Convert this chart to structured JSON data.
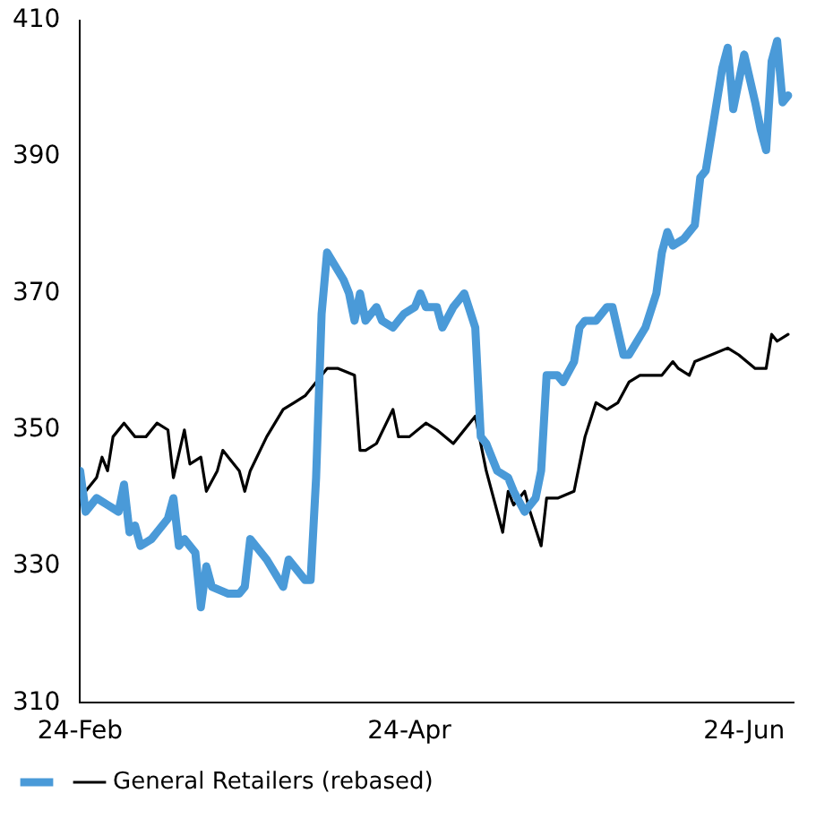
{
  "chart_data": {
    "type": "line",
    "xlim": [
      "--02-24",
      "--07-03"
    ],
    "xticks": [
      {
        "value": "--02-24",
        "label": "24-Feb"
      },
      {
        "value": "--04-24",
        "label": "24-Apr"
      },
      {
        "value": "--06-24",
        "label": "24-Jun"
      }
    ],
    "ylim": [
      310,
      410
    ],
    "yticks": [
      310,
      330,
      350,
      370,
      390,
      410
    ],
    "grid": false,
    "legend": "bottom",
    "marker": "none",
    "line_style": "solid",
    "series": [
      {
        "color": "#4a9ad8",
        "x": [
          "--02-24",
          "--02-25",
          "--02-27",
          "--02-29",
          "--03-02",
          "--03-03",
          "--03-04",
          "--03-05",
          "--03-06",
          "--03-08",
          "--03-09",
          "--03-11",
          "--03-12",
          "--03-13",
          "--03-14",
          "--03-16",
          "--03-17",
          "--03-18",
          "--03-19",
          "--03-22",
          "--03-24",
          "--03-25",
          "--03-26",
          "--03-29",
          "--04-01",
          "--04-02",
          "--04-05",
          "--04-06",
          "--04-07",
          "--04-08",
          "--04-09",
          "--04-12",
          "--04-13",
          "--04-14",
          "--04-15",
          "--04-16",
          "--04-18",
          "--04-19",
          "--04-21",
          "--04-23",
          "--04-25",
          "--04-26",
          "--04-27",
          "--04-29",
          "--04-30",
          "--05-02",
          "--05-04",
          "--05-06",
          "--05-07",
          "--05-08",
          "--05-10",
          "--05-12",
          "--05-13",
          "--05-15",
          "--05-17",
          "--05-18",
          "--05-19",
          "--05-21",
          "--05-22",
          "--05-24",
          "--05-25",
          "--05-26",
          "--05-28",
          "--05-30",
          "--05-31",
          "--06-02",
          "--06-03",
          "--06-06",
          "--06-08",
          "--06-09",
          "--06-10",
          "--06-11",
          "--06-13",
          "--06-15",
          "--06-16",
          "--06-17",
          "--06-18",
          "--06-20",
          "--06-21",
          "--06-22",
          "--06-24",
          "--06-26",
          "--06-27",
          "--06-28",
          "--06-29",
          "--06-30",
          "--07-01",
          "--07-02"
        ],
        "values": [
          344,
          338,
          340,
          339,
          338,
          342,
          335,
          336,
          333,
          334,
          335,
          337,
          340,
          333,
          334,
          332,
          324,
          330,
          327,
          326,
          326,
          327,
          334,
          331,
          327,
          331,
          328,
          328,
          343,
          367,
          376,
          372,
          370,
          366,
          370,
          366,
          368,
          366,
          365,
          367,
          368,
          370,
          368,
          368,
          365,
          368,
          370,
          365,
          349,
          348,
          344,
          343,
          341,
          338,
          340,
          344,
          358,
          358,
          357,
          360,
          365,
          366,
          366,
          368,
          368,
          361,
          361,
          365,
          370,
          376,
          379,
          377,
          378,
          380,
          387,
          388,
          393,
          403,
          406,
          397,
          405,
          398,
          394,
          391,
          404,
          407,
          398,
          399
        ]
      },
      {
        "name": "General Retailers (rebased)",
        "color": "#000000",
        "x": [
          "--02-24",
          "--02-25",
          "--02-27",
          "--02-28",
          "--02-29",
          "--03-01",
          "--03-03",
          "--03-05",
          "--03-07",
          "--03-09",
          "--03-11",
          "--03-12",
          "--03-14",
          "--03-15",
          "--03-17",
          "--03-18",
          "--03-20",
          "--03-21",
          "--03-24",
          "--03-25",
          "--03-26",
          "--03-29",
          "--04-01",
          "--04-03",
          "--04-05",
          "--04-09",
          "--04-11",
          "--04-14",
          "--04-15",
          "--04-16",
          "--04-18",
          "--04-21",
          "--04-22",
          "--04-24",
          "--04-27",
          "--04-29",
          "--05-02",
          "--05-06",
          "--05-08",
          "--05-11",
          "--05-12",
          "--05-13",
          "--05-15",
          "--05-16",
          "--05-18",
          "--05-19",
          "--05-21",
          "--05-24",
          "--05-26",
          "--05-28",
          "--05-30",
          "--06-01",
          "--06-03",
          "--06-05",
          "--06-07",
          "--06-09",
          "--06-11",
          "--06-12",
          "--06-14",
          "--06-15",
          "--06-18",
          "--06-21",
          "--06-23",
          "--06-26",
          "--06-28",
          "--06-29",
          "--06-30",
          "--07-02"
        ],
        "values": [
          344,
          341,
          343,
          346,
          344,
          349,
          351,
          349,
          349,
          351,
          350,
          343,
          350,
          345,
          346,
          341,
          344,
          347,
          344,
          341,
          344,
          349,
          353,
          354,
          355,
          359,
          359,
          358,
          347,
          347,
          348,
          353,
          349,
          349,
          351,
          350,
          348,
          352,
          344,
          335,
          341,
          339,
          341,
          338,
          333,
          340,
          340,
          341,
          349,
          354,
          353,
          354,
          357,
          358,
          358,
          358,
          360,
          359,
          358,
          360,
          361,
          362,
          361,
          359,
          359,
          364,
          363,
          364
        ]
      }
    ]
  }
}
